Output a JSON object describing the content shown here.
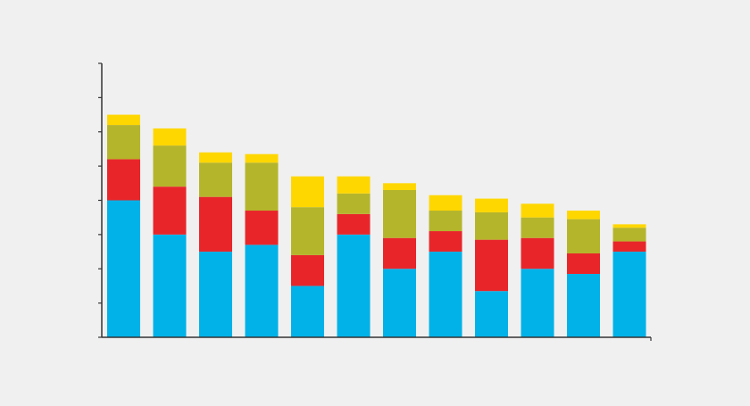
{
  "chart_data": {
    "type": "bar",
    "stacked": true,
    "categories": [
      "",
      "",
      "",
      "",
      "",
      "",
      "",
      "",
      "",
      "",
      "",
      ""
    ],
    "series": [
      {
        "color": "#00b2e8",
        "values": [
          4.0,
          3.0,
          2.5,
          2.7,
          1.5,
          3.0,
          2.0,
          2.5,
          1.35,
          2.0,
          1.85,
          2.5
        ]
      },
      {
        "color": "#e8262a",
        "values": [
          1.2,
          1.4,
          1.6,
          1.0,
          0.9,
          0.6,
          0.9,
          0.6,
          1.5,
          0.9,
          0.6,
          0.3
        ]
      },
      {
        "color": "#b5b52b",
        "values": [
          1.0,
          1.2,
          1.0,
          1.4,
          1.4,
          0.6,
          1.4,
          0.6,
          0.8,
          0.6,
          1.0,
          0.4
        ]
      },
      {
        "color": "#ffd700",
        "values": [
          0.3,
          0.5,
          0.3,
          0.25,
          0.9,
          0.5,
          0.2,
          0.45,
          0.4,
          0.4,
          0.25,
          0.1
        ]
      }
    ],
    "ylim": [
      0,
      8
    ],
    "y_ticks": [
      0,
      1,
      2,
      3,
      4,
      5,
      6,
      7,
      8
    ],
    "grid": false,
    "legend": "none",
    "axis_color": "#333333"
  }
}
